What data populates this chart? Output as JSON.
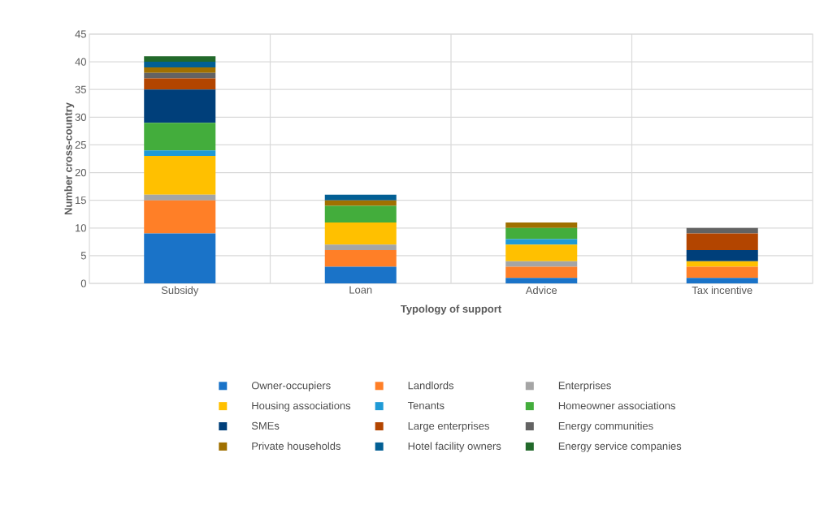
{
  "chart_data": {
    "type": "bar",
    "stacked": true,
    "xlabel": "Typology of support",
    "ylabel": "Number cross-country",
    "categories": [
      "Subsidy",
      "Loan",
      "Advice",
      "Tax incentive"
    ],
    "ylim": [
      0,
      45
    ],
    "yticks": [
      0,
      5,
      10,
      15,
      20,
      25,
      30,
      35,
      40,
      45
    ],
    "grid": true,
    "legend": "bottom",
    "series": [
      {
        "name": "Owner-occupiers",
        "color": "#1a73c8",
        "values": [
          9,
          3,
          1,
          1
        ]
      },
      {
        "name": "Landlords",
        "color": "#ff7f27",
        "values": [
          6,
          3,
          2,
          2
        ]
      },
      {
        "name": "Enterprises",
        "color": "#a5a5a5",
        "values": [
          1,
          1,
          1,
          0
        ]
      },
      {
        "name": "Housing associations",
        "color": "#ffc000",
        "values": [
          7,
          4,
          3,
          1
        ]
      },
      {
        "name": "Tenants",
        "color": "#1f9ad6",
        "values": [
          1,
          0,
          1,
          0
        ]
      },
      {
        "name": "Homeowner associations",
        "color": "#43ad3c",
        "values": [
          5,
          3,
          2,
          0
        ]
      },
      {
        "name": "SMEs",
        "color": "#003f7a",
        "values": [
          6,
          0,
          0,
          2
        ]
      },
      {
        "name": "Large enterprises",
        "color": "#b34500",
        "values": [
          2,
          0,
          0,
          3
        ]
      },
      {
        "name": "Energy communities",
        "color": "#636363",
        "values": [
          1,
          0,
          0,
          1
        ]
      },
      {
        "name": "Private households",
        "color": "#a07000",
        "values": [
          1,
          1,
          1,
          0
        ]
      },
      {
        "name": "Hotel facility owners",
        "color": "#025f94",
        "values": [
          1,
          1,
          0,
          0
        ]
      },
      {
        "name": "Energy service companies",
        "color": "#22692a",
        "values": [
          1,
          0,
          0,
          0
        ]
      }
    ]
  }
}
